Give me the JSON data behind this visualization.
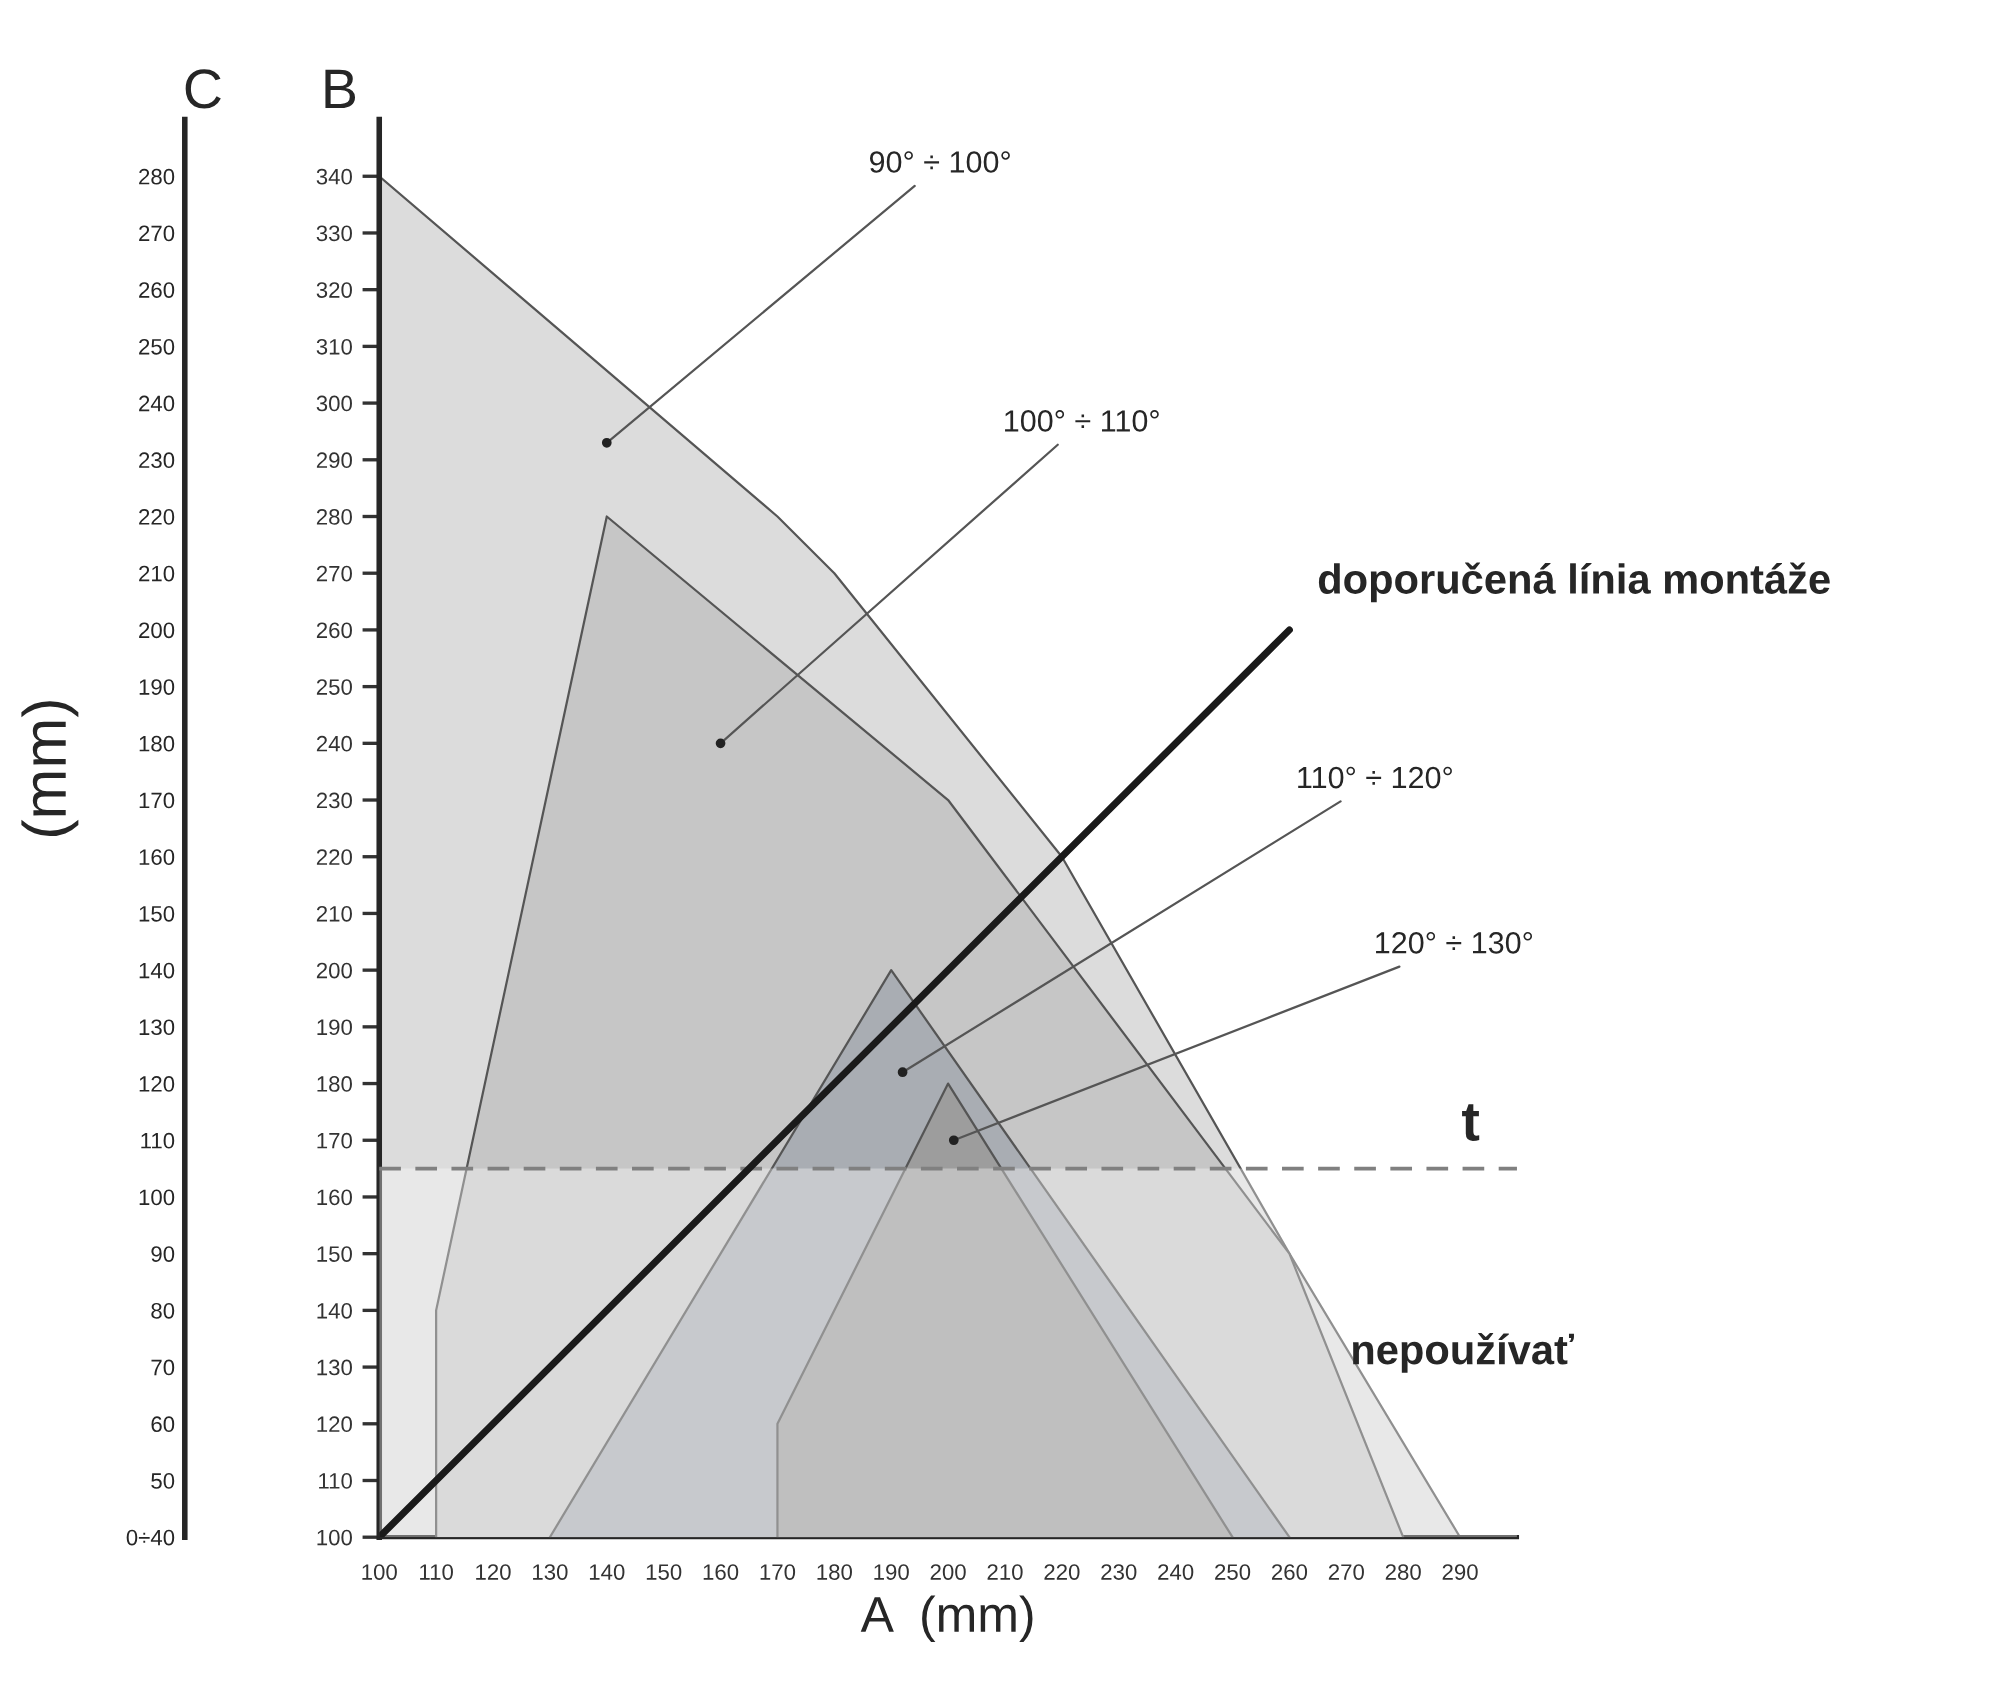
{
  "chart_data": {
    "type": "area",
    "xlabel": "A  (mm)",
    "ylabel": "B",
    "y2label": "C",
    "xlim": [
      100,
      300
    ],
    "xticks": [
      100,
      110,
      120,
      130,
      140,
      150,
      160,
      170,
      180,
      190,
      200,
      210,
      220,
      230,
      240,
      250,
      260,
      270,
      280,
      290
    ],
    "ylim": [
      100,
      350
    ],
    "yticks": [
      100,
      110,
      120,
      130,
      140,
      150,
      160,
      170,
      180,
      190,
      200,
      210,
      220,
      230,
      240,
      250,
      260,
      270,
      280,
      290,
      300,
      310,
      320,
      330,
      340
    ],
    "y2lim": [
      40,
      290
    ],
    "y2ticks": [
      {
        "value": 40,
        "label": "0÷40"
      },
      50,
      60,
      70,
      80,
      90,
      100,
      110,
      120,
      130,
      140,
      150,
      160,
      170,
      180,
      190,
      200,
      210,
      220,
      230,
      240,
      250,
      260,
      270,
      280
    ],
    "grid": false,
    "series": [
      {
        "color": "#dcdcdc",
        "x": [
          100,
          170,
          180,
          220,
          260,
          290
        ],
        "values": [
          340,
          280,
          270,
          220,
          150,
          100
        ]
      },
      {
        "color": "#c6c6c6",
        "x": [
          110,
          110,
          140,
          200,
          260,
          280
        ],
        "values": [
          100,
          140,
          280,
          230,
          150,
          100
        ]
      },
      {
        "color": "#a9adb3",
        "x": [
          130,
          190,
          260
        ],
        "values": [
          100,
          200,
          100
        ]
      },
      {
        "color": "#9d9d9d",
        "x": [
          170,
          170,
          200,
          250
        ],
        "values": [
          100,
          120,
          180,
          100
        ]
      },
      {
        "type": "line",
        "name": "doporučená línia montáže",
        "color": "#1a1a1a",
        "x": [
          100,
          260
        ],
        "values": [
          100,
          260
        ]
      }
    ],
    "ref_lines": [
      {
        "axis": "y",
        "value": 165,
        "label": "t",
        "color": "#808080",
        "line_style": "dashed"
      }
    ],
    "bands": [
      {
        "axis": "y",
        "from": 100,
        "to": 165,
        "label": "nepoužívať",
        "color": "#ffffff"
      }
    ],
    "annotations": [
      {
        "text": "90° ÷ 100°",
        "x": 140,
        "y": 293
      },
      {
        "text": "100° ÷ 110°",
        "x": 160,
        "y": 240
      },
      {
        "text": "110° ÷ 120°",
        "x": 192,
        "y": 182
      },
      {
        "text": "120° ÷ 130°",
        "x": 201,
        "y": 170
      },
      "(mm)"
    ]
  }
}
